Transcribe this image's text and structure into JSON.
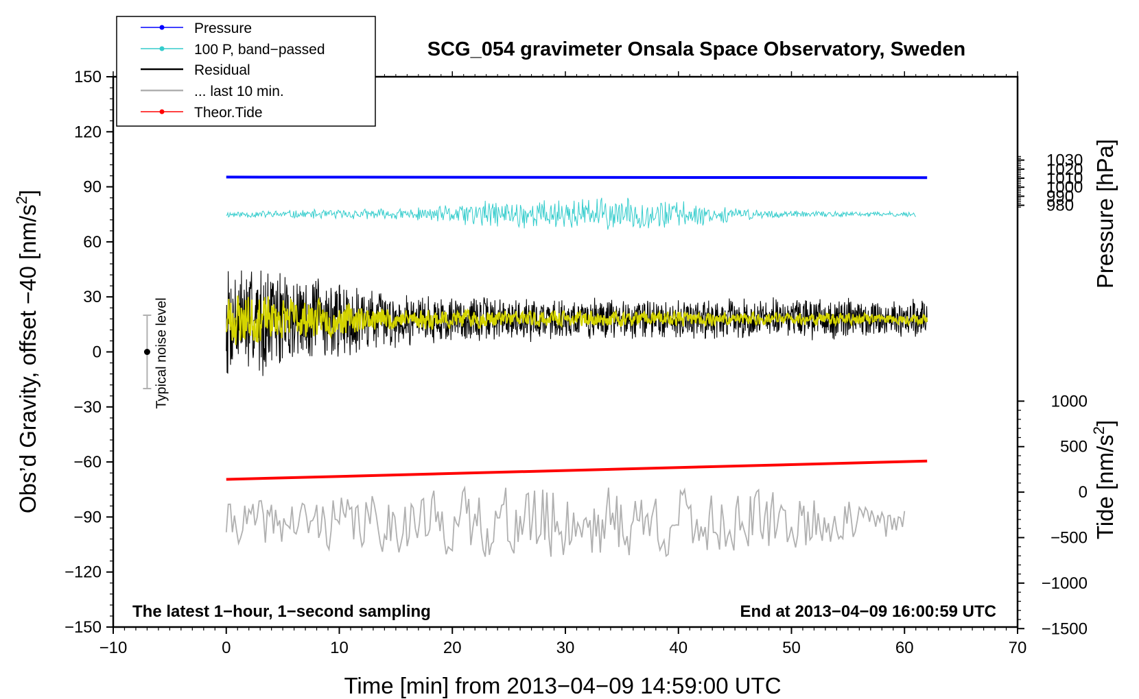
{
  "chart_data": {
    "type": "line",
    "title": "SCG_054 gravimeter Onsala Space Observatory, Sweden",
    "xlabel": "Time [min] from 2013−04−09 14:59:00 UTC",
    "xlim": [
      -10,
      70
    ],
    "xticks": [
      -10,
      0,
      10,
      20,
      30,
      40,
      50,
      60,
      70
    ],
    "left_axis": {
      "label": "Obs’d Gravity, offset −40 [nm/s²]",
      "label_main": "Obs’d Gravity, offset −40 [nm/s",
      "label_sup": "2",
      "label_close": "]",
      "ylim": [
        -150,
        150
      ],
      "ticks": [
        -150,
        -120,
        -90,
        -60,
        -30,
        0,
        30,
        60,
        90,
        120,
        150
      ]
    },
    "right_pressure_axis": {
      "label": "Pressure [hPa]",
      "ticks": [
        980,
        990,
        1000,
        1010,
        1020,
        1030
      ]
    },
    "right_tide_axis": {
      "label": "Tide [nm/s²]",
      "label_main": "Tide [nm/s",
      "label_sup": "2",
      "label_close": "]",
      "ticks": [
        -1500,
        -1000,
        -500,
        0,
        500,
        1000
      ]
    },
    "legend": {
      "position": "top-left",
      "entries": [
        {
          "label": "Pressure",
          "color": "#0000ff",
          "marker": true
        },
        {
          "label": "100 P, band−passed",
          "color": "#33cccc",
          "marker": true
        },
        {
          "label": "Residual",
          "color": "#000000",
          "marker": false
        },
        {
          "label": "... last 10 min.",
          "color": "#b0b0b0",
          "marker": false
        },
        {
          "label": "Theor.Tide",
          "color": "#ff0000",
          "marker": true
        }
      ]
    },
    "series": [
      {
        "name": "Pressure",
        "color": "#0000ff",
        "axis": "pressure",
        "x": [
          0,
          62
        ],
        "values": [
          1011.2,
          1011.1
        ],
        "plot_values": [
          95.3,
          95.0
        ]
      },
      {
        "name": "100 P, band−passed",
        "color": "#33cccc",
        "axis": "gravity",
        "x_range": [
          0,
          61
        ],
        "center": 75,
        "envelope": {
          "x": [
            0,
            10,
            18,
            22,
            27,
            33,
            39,
            45,
            50,
            61
          ],
          "amp": [
            2,
            3,
            4,
            8,
            9,
            10,
            9,
            4,
            2,
            1.5
          ]
        }
      },
      {
        "name": "Residual",
        "color": "#000000",
        "axis": "gravity",
        "x_range": [
          0,
          62
        ],
        "center": 18,
        "envelope": {
          "x": [
            0,
            5,
            9,
            15,
            25,
            35,
            45,
            55,
            62
          ],
          "amp": [
            35,
            30,
            24,
            16,
            13,
            12,
            12,
            12,
            11
          ]
        }
      },
      {
        "name": "Residual smoothed",
        "color": "#d4d400",
        "axis": "gravity",
        "x_range": [
          0,
          62
        ],
        "center": 18,
        "envelope": {
          "x": [
            0,
            3,
            8,
            15,
            30,
            62
          ],
          "amp": [
            12,
            9,
            7,
            4,
            3,
            2
          ]
        }
      },
      {
        "name": "... last 10 min.",
        "color": "#b0b0b0",
        "axis": "gravity",
        "x_range": [
          0,
          60
        ],
        "center": -93,
        "envelope": {
          "x": [
            0,
            10,
            20,
            30,
            40,
            50,
            60
          ],
          "amp": [
            7,
            9,
            11,
            13,
            12,
            10,
            5
          ]
        }
      },
      {
        "name": "Theor.Tide",
        "color": "#ff0000",
        "axis": "tide",
        "x": [
          0,
          62
        ],
        "values": [
          140,
          310
        ],
        "plot_values": [
          -69.5,
          -59.5
        ]
      }
    ],
    "noise_bar": {
      "label": "Typical noise level",
      "x": -7,
      "center": 0,
      "half_range": 20
    },
    "annotations": {
      "bottom_left": "The latest 1−hour, 1−second sampling",
      "bottom_right": "End at 2013−04−09 16:00:59 UTC"
    }
  }
}
